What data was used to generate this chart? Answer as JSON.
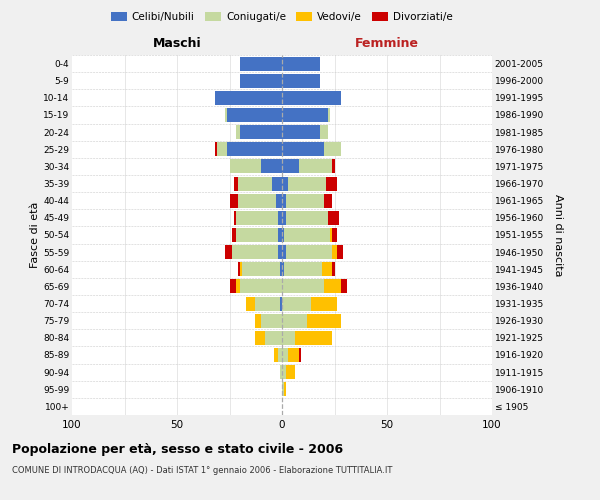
{
  "age_groups": [
    "100+",
    "95-99",
    "90-94",
    "85-89",
    "80-84",
    "75-79",
    "70-74",
    "65-69",
    "60-64",
    "55-59",
    "50-54",
    "45-49",
    "40-44",
    "35-39",
    "30-34",
    "25-29",
    "20-24",
    "15-19",
    "10-14",
    "5-9",
    "0-4"
  ],
  "birth_years": [
    "≤ 1905",
    "1906-1910",
    "1911-1915",
    "1916-1920",
    "1921-1925",
    "1926-1930",
    "1931-1935",
    "1936-1940",
    "1941-1945",
    "1946-1950",
    "1951-1955",
    "1956-1960",
    "1961-1965",
    "1966-1970",
    "1971-1975",
    "1976-1980",
    "1981-1985",
    "1986-1990",
    "1991-1995",
    "1996-2000",
    "2001-2005"
  ],
  "maschi": {
    "celibi": [
      0,
      0,
      0,
      0,
      0,
      0,
      1,
      0,
      1,
      2,
      2,
      2,
      3,
      5,
      10,
      26,
      20,
      26,
      32,
      20,
      20
    ],
    "coniugati": [
      0,
      0,
      1,
      2,
      8,
      10,
      12,
      20,
      18,
      22,
      20,
      20,
      18,
      16,
      15,
      5,
      2,
      1,
      0,
      0,
      0
    ],
    "vedovi": [
      0,
      0,
      0,
      2,
      5,
      3,
      4,
      2,
      1,
      0,
      0,
      0,
      0,
      0,
      0,
      0,
      0,
      0,
      0,
      0,
      0
    ],
    "divorziati": [
      0,
      0,
      0,
      0,
      0,
      0,
      0,
      3,
      1,
      3,
      2,
      1,
      4,
      2,
      0,
      1,
      0,
      0,
      0,
      0,
      0
    ]
  },
  "femmine": {
    "nubili": [
      0,
      0,
      0,
      0,
      0,
      0,
      0,
      0,
      1,
      2,
      1,
      2,
      2,
      3,
      8,
      20,
      18,
      22,
      28,
      18,
      18
    ],
    "coniugate": [
      0,
      1,
      2,
      3,
      6,
      12,
      14,
      20,
      18,
      22,
      22,
      20,
      18,
      18,
      16,
      8,
      4,
      1,
      0,
      0,
      0
    ],
    "vedove": [
      0,
      1,
      4,
      5,
      18,
      16,
      12,
      8,
      5,
      2,
      1,
      0,
      0,
      0,
      0,
      0,
      0,
      0,
      0,
      0,
      0
    ],
    "divorziate": [
      0,
      0,
      0,
      1,
      0,
      0,
      0,
      3,
      1,
      3,
      2,
      5,
      4,
      5,
      1,
      0,
      0,
      0,
      0,
      0,
      0
    ]
  },
  "colors": {
    "celibi": "#4472C4",
    "coniugati": "#c5d9a0",
    "vedovi": "#ffc000",
    "divorziati": "#cc0000"
  },
  "xlim": 100,
  "title": "Popolazione per età, sesso e stato civile - 2006",
  "subtitle": "COMUNE DI INTRODACQUA (AQ) - Dati ISTAT 1° gennaio 2006 - Elaborazione TUTTITALIA.IT",
  "ylabel_left": "Fasce di età",
  "ylabel_right": "Anni di nascita",
  "xlabel_left": "Maschi",
  "xlabel_right": "Femmine",
  "bg_color": "#f0f0f0",
  "plot_bg_color": "#ffffff"
}
